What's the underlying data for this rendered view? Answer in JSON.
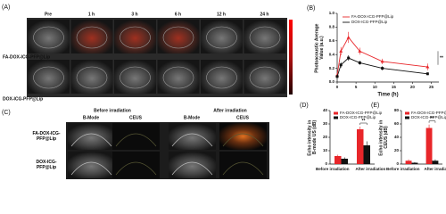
{
  "figure": {
    "panel_a": {
      "label": "(A)",
      "times": [
        "Pre",
        "1 h",
        "3 h",
        "6 h",
        "12 h",
        "24 h"
      ],
      "rows": [
        "FA-DOX-ICG-PFP@Lip",
        "DOX-ICG-PFP@Lip"
      ]
    },
    "panel_c": {
      "label": "(C)",
      "groups": [
        "Before irradiation",
        "After irradiation"
      ],
      "modes": [
        "B-Mode",
        "CEUS",
        "B-Mode",
        "CEUS"
      ],
      "rows": [
        "FA-DOX-ICG-PFP@Lip",
        "DOX-ICG-PFP@Lip"
      ]
    }
  },
  "chart_data": [
    {
      "type": "line",
      "label": "(B)",
      "ylabel": "Photoacoustic Average Value (a.u.)",
      "xlabel": "Time (h)",
      "x": [
        0,
        1,
        3,
        6,
        12,
        24
      ],
      "series": [
        {
          "name": "FA-DOX-ICG-PFP@Lip",
          "color": "#e8262a",
          "marker": "triangle",
          "values": [
            0.1,
            0.45,
            0.65,
            0.45,
            0.3,
            0.22
          ],
          "errors": [
            0.03,
            0.06,
            0.08,
            0.05,
            0.04,
            0.05
          ]
        },
        {
          "name": "DOX-ICG-PFP@Lip",
          "color": "#111111",
          "marker": "square",
          "values": [
            0.08,
            0.25,
            0.35,
            0.28,
            0.2,
            0.12
          ],
          "errors": [
            0.02,
            0.04,
            0.04,
            0.03,
            0.03,
            0.02
          ]
        }
      ],
      "xlim": [
        0,
        27
      ],
      "xticks": [
        0,
        5,
        10,
        15,
        20,
        25
      ],
      "ylim": [
        0,
        1
      ],
      "yticks": [
        {
          "value": 0,
          "label": "0.0"
        },
        0.2,
        0.4,
        0.6,
        0.8,
        {
          "value": 1,
          "label": "1.0"
        }
      ],
      "annotation": "**",
      "legend": "upper left"
    },
    {
      "type": "bar",
      "label": "(D)",
      "ylabel": "Echo intensity in B-mode US (dB)",
      "categories": [
        "Before irradiation",
        "After irradiation"
      ],
      "series": [
        {
          "name": "FA-DOX-ICG-PFP@Lip",
          "color": "#e8262a",
          "values": [
            6,
            26
          ],
          "errors": [
            1,
            2
          ]
        },
        {
          "name": "DOX-ICG-PFP@Lip",
          "color": "#111111",
          "values": [
            4,
            14
          ],
          "errors": [
            1,
            3
          ]
        }
      ],
      "ylim": [
        0,
        40
      ],
      "yticks": [
        0,
        10,
        20,
        30,
        40
      ],
      "annotation": "**",
      "legend": "upper left"
    },
    {
      "type": "bar",
      "label": "(E)",
      "ylabel": "Echo intensity in CEUS (dB)",
      "categories": [
        "Before irradiation",
        "After irradiation"
      ],
      "series": [
        {
          "name": "FA-DOX-ICG-PFP@Lip",
          "color": "#e8262a",
          "values": [
            5,
            54
          ],
          "errors": [
            2,
            5
          ]
        },
        {
          "name": "DOX-ICG-PFP@Lip",
          "color": "#111111",
          "values": [
            2,
            5
          ],
          "errors": [
            1,
            2
          ]
        }
      ],
      "ylim": [
        0,
        80
      ],
      "yticks": [
        0,
        20,
        40,
        60,
        80
      ],
      "annotation": "**",
      "legend": "upper left"
    }
  ]
}
